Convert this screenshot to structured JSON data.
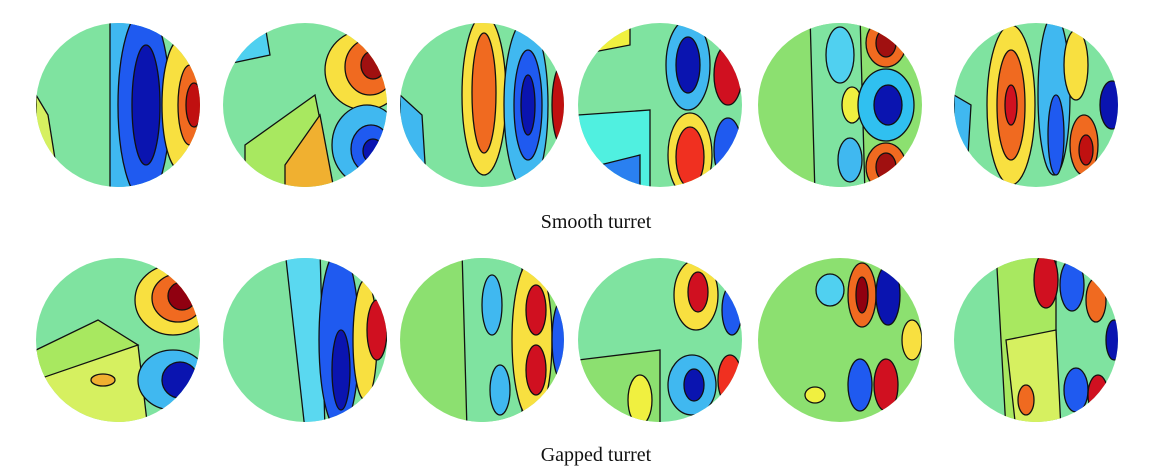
{
  "rows": [
    {
      "caption": "Smooth turret"
    },
    {
      "caption": "Gapped turret"
    }
  ]
}
